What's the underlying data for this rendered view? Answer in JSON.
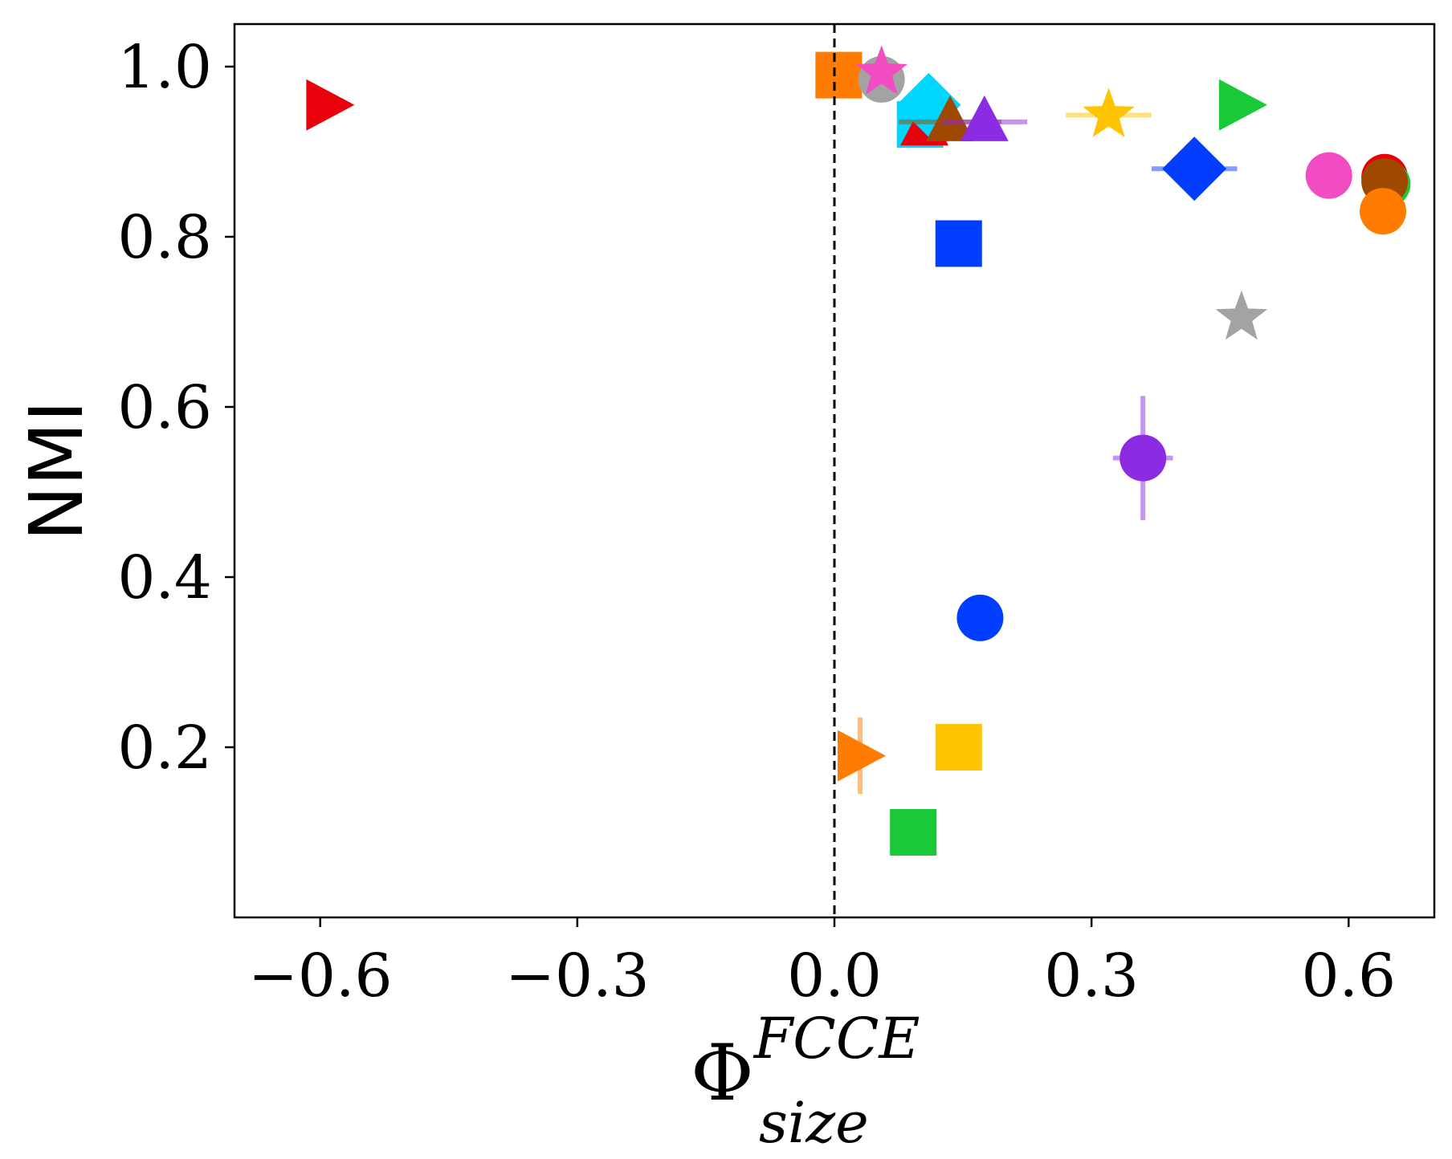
{
  "chart_data": {
    "type": "scatter",
    "title": "",
    "xlabel": "Φ",
    "xlabel_superscript": "FCCE",
    "xlabel_subscript": "size",
    "ylabel": "NMI",
    "xlim": [
      -0.7,
      0.7
    ],
    "ylim": [
      0.0,
      1.05
    ],
    "xticks": [
      -0.6,
      -0.3,
      0.0,
      0.3,
      0.6
    ],
    "xtick_labels": [
      "−0.6",
      "−0.3",
      "0.0",
      "0.3",
      "0.6"
    ],
    "yticks": [
      0.2,
      0.4,
      0.6,
      0.8,
      1.0
    ],
    "ytick_labels": [
      "0.2",
      "0.4",
      "0.6",
      "0.8",
      "1.0"
    ],
    "grid": false,
    "reference_line": {
      "x": 0.0,
      "style": "dashed",
      "color": "#000000"
    },
    "points": [
      {
        "x": -0.59,
        "y": 0.955,
        "marker": "triangle-right",
        "color": "#e8000b"
      },
      {
        "x": 0.005,
        "y": 0.99,
        "marker": "square",
        "color": "#ff7c00"
      },
      {
        "x": 0.055,
        "y": 0.985,
        "marker": "circle",
        "color": "#a3a3a3"
      },
      {
        "x": 0.055,
        "y": 0.993,
        "marker": "star",
        "color": "#f14cc1"
      },
      {
        "x": 0.1,
        "y": 0.932,
        "marker": "square",
        "color": "#00d7ff"
      },
      {
        "x": 0.105,
        "y": 0.93,
        "marker": "triangle-up",
        "color": "#e8000b"
      },
      {
        "x": 0.11,
        "y": 0.955,
        "marker": "diamond",
        "color": "#00d7ff"
      },
      {
        "x": 0.135,
        "y": 0.935,
        "marker": "triangle-up",
        "color": "#9f4800",
        "xerr": 0.06
      },
      {
        "x": 0.175,
        "y": 0.935,
        "marker": "triangle-up",
        "color": "#8b2be2",
        "xerr": 0.05
      },
      {
        "x": 0.32,
        "y": 0.943,
        "marker": "star",
        "color": "#ffc400",
        "xerr": 0.05
      },
      {
        "x": 0.475,
        "y": 0.955,
        "marker": "triangle-right",
        "color": "#1ac938"
      },
      {
        "x": 0.42,
        "y": 0.88,
        "marker": "diamond",
        "color": "#023eff",
        "xerr": 0.05
      },
      {
        "x": 0.577,
        "y": 0.872,
        "marker": "circle",
        "color": "#f14cc1"
      },
      {
        "x": 0.642,
        "y": 0.87,
        "marker": "circle",
        "color": "#e8000b"
      },
      {
        "x": 0.645,
        "y": 0.862,
        "marker": "circle",
        "color": "#1ac938"
      },
      {
        "x": 0.642,
        "y": 0.865,
        "marker": "circle",
        "color": "#9f4800"
      },
      {
        "x": 0.64,
        "y": 0.83,
        "marker": "circle",
        "color": "#ff7c00"
      },
      {
        "x": 0.145,
        "y": 0.792,
        "marker": "square",
        "color": "#023eff"
      },
      {
        "x": 0.475,
        "y": 0.705,
        "marker": "star",
        "color": "#a3a3a3"
      },
      {
        "x": 0.36,
        "y": 0.54,
        "marker": "circle",
        "color": "#8b2be2",
        "xerr": 0.035,
        "yerr": 0.073
      },
      {
        "x": 0.17,
        "y": 0.352,
        "marker": "circle",
        "color": "#023eff"
      },
      {
        "x": 0.03,
        "y": 0.19,
        "marker": "triangle-right",
        "color": "#ff7c00",
        "yerr": 0.045
      },
      {
        "x": 0.145,
        "y": 0.2,
        "marker": "square",
        "color": "#ffc400"
      },
      {
        "x": 0.092,
        "y": 0.1,
        "marker": "square",
        "color": "#1ac938"
      }
    ]
  }
}
